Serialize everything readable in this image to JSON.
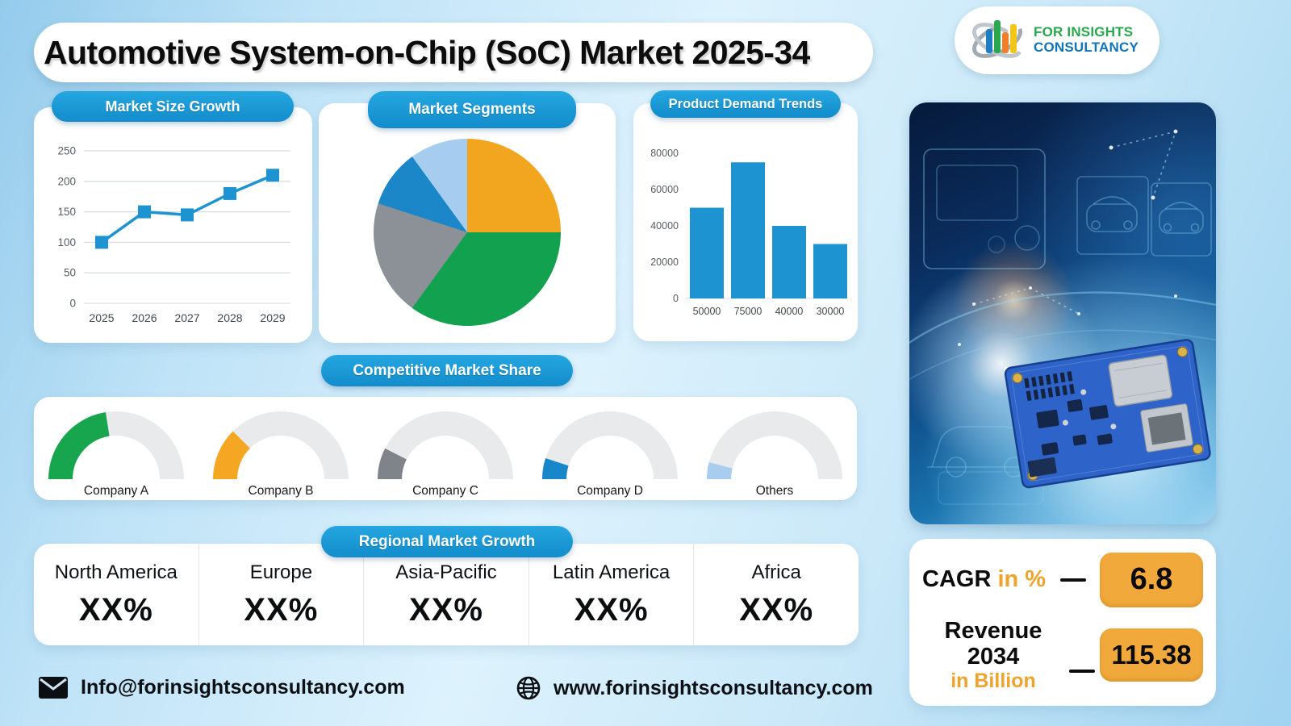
{
  "header": {
    "title": "Automotive System-on-Chip (SoC) Market 2025-34",
    "logo": {
      "line1": "FOR INSIGHTS",
      "line2": "CONSULTANCY"
    }
  },
  "chart_data": [
    {
      "type": "line",
      "title": "Market Size Growth",
      "x": [
        "2025",
        "2026",
        "2027",
        "2028",
        "2029"
      ],
      "values": [
        100,
        150,
        145,
        180,
        210
      ],
      "ylim": [
        0,
        250
      ],
      "yticks": [
        250,
        200,
        150,
        100,
        50,
        0
      ],
      "grid": "horizontal",
      "marker": "square",
      "color": "#1D93D2"
    },
    {
      "type": "pie",
      "title": "Market Segments",
      "start": "12-oclock-clockwise",
      "segments": [
        {
          "value": 25,
          "color": "#F2A51F"
        },
        {
          "value": 35,
          "color": "#12A14F"
        },
        {
          "value": 20,
          "color": "#8B9196"
        },
        {
          "value": 10,
          "color": "#1B87C9"
        },
        {
          "value": 10,
          "color": "#A6CDEF"
        }
      ]
    },
    {
      "type": "bar",
      "title": "Product Demand Trends",
      "categories": [
        "50000",
        "75000",
        "40000",
        "30000"
      ],
      "values": [
        50000,
        75000,
        40000,
        30000
      ],
      "ylim": [
        0,
        80000
      ],
      "yticks": [
        80000,
        60000,
        40000,
        20000,
        0
      ],
      "color": "#1D93D2"
    },
    {
      "type": "gauge",
      "title": "Competitive Market Share",
      "items": [
        {
          "label": "Company A",
          "value_pct": 45,
          "color": "#17A64E"
        },
        {
          "label": "Company B",
          "value_pct": 25,
          "color": "#F5A623"
        },
        {
          "label": "Company C",
          "value_pct": 15,
          "color": "#7E8489"
        },
        {
          "label": "Company D",
          "value_pct": 10,
          "color": "#1787C9"
        },
        {
          "label": "Others",
          "value_pct": 8,
          "color": "#A8CDEF"
        }
      ]
    }
  ],
  "sections": {
    "regional": {
      "title": "Regional Market Growth",
      "regions": [
        {
          "name": "North America",
          "value": "XX%"
        },
        {
          "name": "Europe",
          "value": "XX%"
        },
        {
          "name": "Asia-Pacific",
          "value": "XX%"
        },
        {
          "name": "Latin America",
          "value": "XX%"
        },
        {
          "name": "Africa",
          "value": "XX%"
        }
      ]
    },
    "stats": {
      "cagr_label": "CAGR",
      "cagr_unit": "in %",
      "cagr_value": "6.8",
      "revenue_label": "Revenue 2034",
      "revenue_unit": "in Billion",
      "revenue_value": "115.38"
    }
  },
  "footer": {
    "email": "Info@forinsightsconsultancy.com",
    "website": "www.forinsightsconsultancy.com"
  },
  "colors": {
    "accent_blue": "#1B9CD8",
    "accent_orange": "#F2A93B",
    "card_bg": "#FFFFFF"
  }
}
